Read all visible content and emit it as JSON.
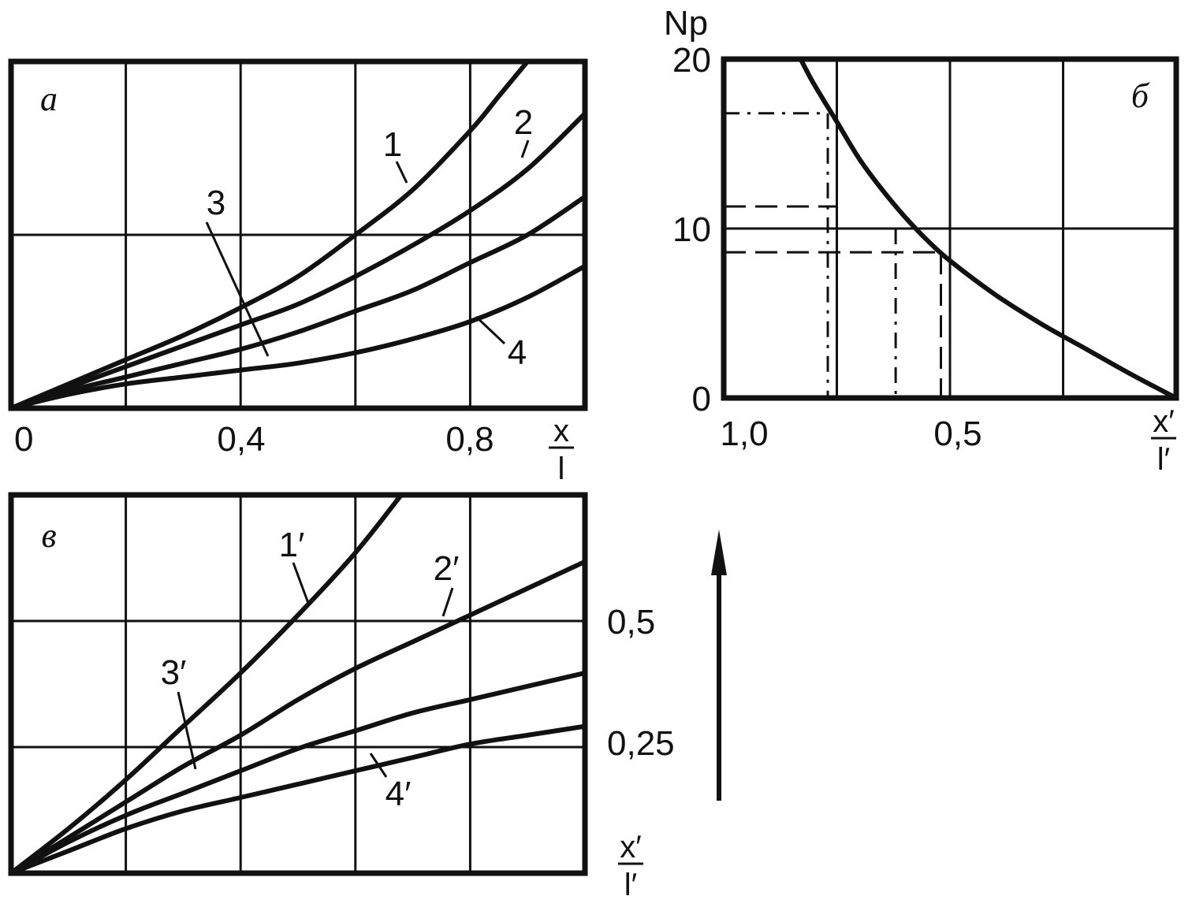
{
  "chart_data": [
    {
      "panel": "a",
      "type": "line",
      "panel_label": "а",
      "x_label_num": "x",
      "x_label_den": "l",
      "xlim": [
        0,
        1.0
      ],
      "ylim": [
        0,
        1.0
      ],
      "x_ticks": [
        "0",
        "0,4",
        "0,8"
      ],
      "x_tick_values": [
        0,
        0.4,
        0.8
      ],
      "grid": true,
      "series": [
        {
          "name": "1",
          "x": [
            0,
            0.1,
            0.2,
            0.3,
            0.4,
            0.5,
            0.6,
            0.7,
            0.8,
            0.85,
            0.9
          ],
          "y": [
            0,
            0.07,
            0.14,
            0.21,
            0.29,
            0.38,
            0.5,
            0.63,
            0.8,
            0.9,
            1.0
          ]
        },
        {
          "name": "2",
          "x": [
            0,
            0.1,
            0.2,
            0.3,
            0.4,
            0.5,
            0.6,
            0.7,
            0.8,
            0.9,
            1.0
          ],
          "y": [
            0,
            0.06,
            0.12,
            0.18,
            0.24,
            0.3,
            0.38,
            0.47,
            0.57,
            0.69,
            0.85
          ]
        },
        {
          "name": "3",
          "x": [
            0,
            0.1,
            0.2,
            0.3,
            0.4,
            0.5,
            0.6,
            0.7,
            0.8,
            0.9,
            1.0
          ],
          "y": [
            0,
            0.05,
            0.09,
            0.13,
            0.17,
            0.22,
            0.28,
            0.34,
            0.42,
            0.5,
            0.61
          ]
        },
        {
          "name": "4",
          "x": [
            0,
            0.1,
            0.2,
            0.3,
            0.4,
            0.5,
            0.6,
            0.7,
            0.8,
            0.9,
            1.0
          ],
          "y": [
            0,
            0.04,
            0.07,
            0.09,
            0.11,
            0.13,
            0.16,
            0.2,
            0.25,
            0.32,
            0.41
          ]
        }
      ]
    },
    {
      "panel": "b",
      "type": "line",
      "panel_label": "б",
      "y_label": "Np",
      "x_label_num": "x′",
      "x_label_den": "l′",
      "xlim": [
        1.0,
        0.0
      ],
      "ylim": [
        0,
        20
      ],
      "x_ticks": [
        "1,0",
        "0,5"
      ],
      "x_tick_values": [
        1.0,
        0.5
      ],
      "y_ticks": [
        "0",
        "10",
        "20"
      ],
      "y_tick_values": [
        0,
        10,
        20
      ],
      "grid": true,
      "series": [
        {
          "name": "",
          "x": [
            0.83,
            0.8,
            0.75,
            0.7,
            0.65,
            0.6,
            0.55,
            0.5,
            0.4,
            0.3,
            0.2,
            0.1,
            0.0
          ],
          "y": [
            20,
            18.5,
            16.3,
            14.1,
            12.3,
            10.7,
            9.3,
            8.1,
            6.1,
            4.4,
            2.9,
            1.4,
            0
          ]
        }
      ],
      "construction_lines_y": [
        16.8,
        11.3,
        10.0,
        8.6
      ],
      "construction_lines_x": [
        0.77,
        0.75,
        0.62,
        0.52
      ]
    },
    {
      "panel": "c",
      "type": "line",
      "panel_label": "в",
      "x_label_num": "x′",
      "x_label_den": "l′",
      "xlim": [
        0,
        1.0
      ],
      "ylim": [
        0,
        0.85
      ],
      "y_ticks": [
        "0,25",
        "0,5"
      ],
      "y_tick_values": [
        0.25,
        0.5
      ],
      "grid": true,
      "series": [
        {
          "name": "1′",
          "x": [
            0,
            0.1,
            0.2,
            0.3,
            0.4,
            0.5,
            0.6,
            0.68
          ],
          "y": [
            0,
            0.1,
            0.21,
            0.33,
            0.45,
            0.58,
            0.72,
            0.85
          ]
        },
        {
          "name": "2′",
          "x": [
            0,
            0.1,
            0.2,
            0.3,
            0.4,
            0.5,
            0.6,
            0.7,
            0.8,
            0.9,
            1.0
          ],
          "y": [
            0,
            0.08,
            0.16,
            0.24,
            0.31,
            0.39,
            0.46,
            0.52,
            0.58,
            0.64,
            0.7
          ]
        },
        {
          "name": "3′",
          "x": [
            0,
            0.1,
            0.2,
            0.3,
            0.4,
            0.5,
            0.6,
            0.7,
            0.8,
            0.9,
            1.0
          ],
          "y": [
            0,
            0.07,
            0.13,
            0.18,
            0.23,
            0.28,
            0.32,
            0.36,
            0.39,
            0.42,
            0.45
          ]
        },
        {
          "name": "4′",
          "x": [
            0,
            0.1,
            0.2,
            0.3,
            0.4,
            0.5,
            0.6,
            0.7,
            0.8,
            0.9,
            1.0
          ],
          "y": [
            0,
            0.05,
            0.1,
            0.14,
            0.17,
            0.2,
            0.23,
            0.26,
            0.29,
            0.31,
            0.33
          ]
        }
      ]
    }
  ],
  "arrow": {
    "direction": "up",
    "color": "#111111"
  }
}
